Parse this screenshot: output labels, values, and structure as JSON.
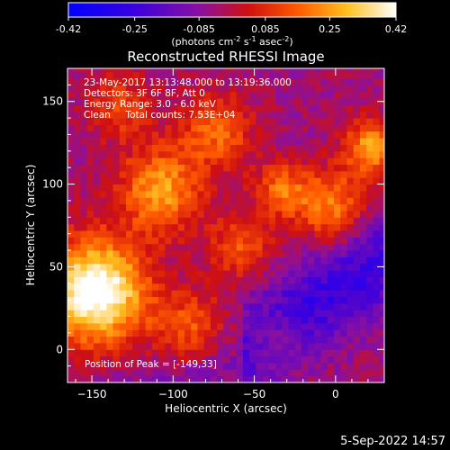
{
  "colorbar": {
    "ticks": [
      "-0.42",
      "-0.25",
      "-0.085",
      "0.085",
      "0.25",
      "0.42"
    ],
    "unit_main": "(photons cm",
    "unit_exp1": "-2",
    "unit_mid": " s",
    "unit_exp2": "-1",
    "unit_mid2": " asec",
    "unit_exp3": "-2",
    "unit_close": ")"
  },
  "chart_data": {
    "type": "heatmap",
    "title": "Reconstructed RHESSI Image",
    "xlabel": "Heliocentric X (arcsec)",
    "ylabel": "Heliocentric Y (arcsec)",
    "xlim": [
      -165,
      30
    ],
    "ylim": [
      -20,
      170
    ],
    "x_ticks": [
      -150,
      -100,
      -50,
      0
    ],
    "y_ticks": [
      0,
      50,
      100,
      150
    ],
    "color_range": [
      -0.42,
      0.42
    ],
    "annotations": [
      "23-May-2017 13:13:48.000 to 13:19:36.000",
      "Detectors: 3F 6F 8F, Att 0",
      "Energy Range: 3.0 - 6.0 keV",
      "Clean     Total counts: 7.53E+04"
    ],
    "peak_label": "Position of Peak = [-149,33]",
    "peak": [
      -149,
      33
    ]
  },
  "footer": {
    "date": "5-Sep-2022 14:57"
  }
}
